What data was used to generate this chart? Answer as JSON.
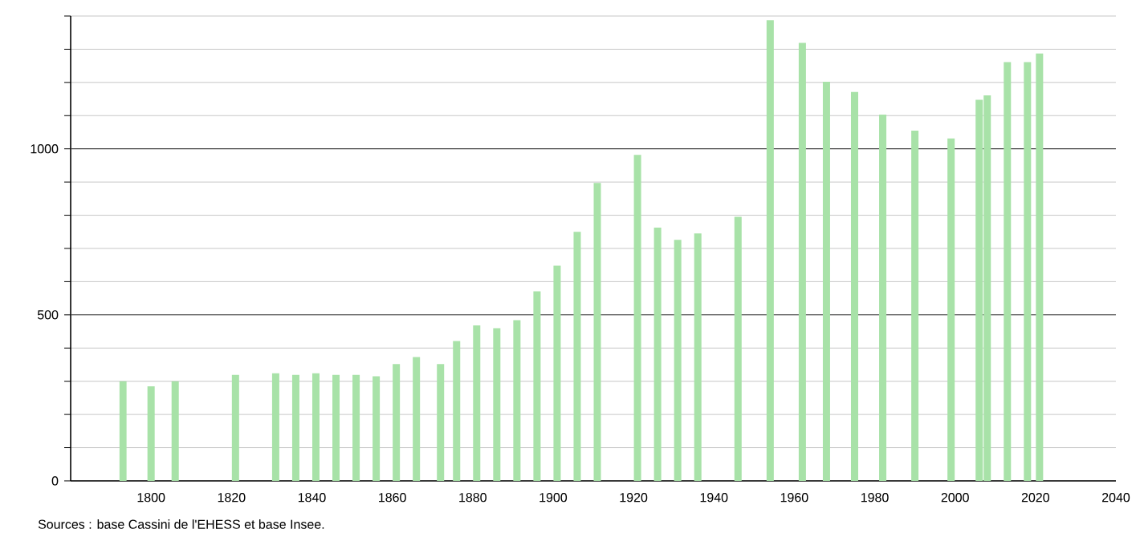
{
  "chart_data": {
    "type": "bar",
    "color": "#a8e2a8",
    "x": [
      1793,
      1800,
      1806,
      1821,
      1831,
      1836,
      1841,
      1846,
      1851,
      1856,
      1861,
      1866,
      1872,
      1876,
      1881,
      1886,
      1891,
      1896,
      1901,
      1906,
      1911,
      1921,
      1926,
      1931,
      1936,
      1946,
      1954,
      1962,
      1968,
      1975,
      1982,
      1990,
      1999,
      2006,
      2008,
      2013,
      2018,
      2021
    ],
    "values": [
      300,
      285,
      300,
      319,
      324,
      319,
      324,
      319,
      319,
      315,
      352,
      373,
      352,
      421,
      468,
      460,
      484,
      571,
      648,
      750,
      897,
      982,
      763,
      726,
      745,
      795,
      1387,
      1319,
      1202,
      1171,
      1103,
      1055,
      1031,
      1148,
      1161,
      1261,
      1261,
      1287
    ],
    "xlim": [
      1780,
      2040
    ],
    "xticks": [
      1800,
      1820,
      1840,
      1860,
      1880,
      1900,
      1920,
      1940,
      1960,
      1980,
      2000,
      2020,
      2040
    ],
    "ylim": [
      0,
      1400
    ],
    "yticks": [
      0,
      {
        "value": 100,
        "label": null
      },
      {
        "value": 200,
        "label": null
      },
      {
        "value": 300,
        "label": null
      },
      {
        "value": 400,
        "label": null
      },
      500,
      {
        "value": 600,
        "label": null
      },
      {
        "value": 700,
        "label": null
      },
      {
        "value": 800,
        "label": null
      },
      {
        "value": 900,
        "label": null
      },
      1000,
      {
        "value": 1100,
        "label": null
      },
      {
        "value": 1200,
        "label": null
      },
      {
        "value": 1300,
        "label": null
      },
      {
        "value": 1400,
        "label": null
      }
    ],
    "grid": "y",
    "annotations": [
      "Sources : base Cassini de l'EHESS et base Insee."
    ]
  }
}
